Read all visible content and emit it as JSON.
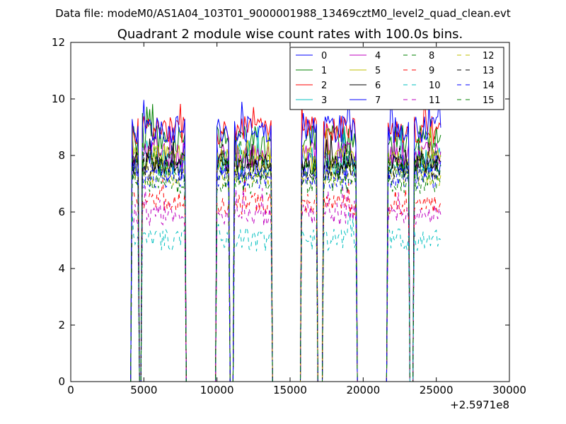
{
  "figure": {
    "suptitle": "Data file: modeM0/AS1A04_103T01_9000001988_13469cztM0_level2_quad_clean.evt"
  },
  "chart_data": {
    "type": "line",
    "title": "Quadrant 2 module wise count rates with 100.0s bins.",
    "xlabel": "",
    "ylabel": "",
    "x_offset_label": "+2.5971e8",
    "xlim": [
      0,
      30000
    ],
    "ylim": [
      0,
      12
    ],
    "x_ticks": [
      0,
      5000,
      10000,
      15000,
      20000,
      25000,
      30000
    ],
    "y_ticks": [
      0,
      2,
      4,
      6,
      8,
      10,
      12
    ],
    "grid": false,
    "legend_position": "top-right",
    "legend_columns": 4,
    "active_ranges": [
      [
        4200,
        4600
      ],
      [
        4900,
        7800
      ],
      [
        10000,
        10800
      ],
      [
        11200,
        13700
      ],
      [
        15800,
        16800
      ],
      [
        17300,
        19500
      ],
      [
        21700,
        23100
      ],
      [
        23500,
        25300
      ]
    ],
    "series": [
      {
        "name": "0",
        "color": "#0000ff",
        "dash": "solid",
        "level": 7.6,
        "amp": 0.5
      },
      {
        "name": "1",
        "color": "#008000",
        "dash": "solid",
        "level": 8.5,
        "amp": 0.6
      },
      {
        "name": "2",
        "color": "#ff0000",
        "dash": "solid",
        "level": 8.9,
        "amp": 0.5
      },
      {
        "name": "3",
        "color": "#00bfbf",
        "dash": "solid",
        "level": 7.8,
        "amp": 0.5
      },
      {
        "name": "4",
        "color": "#bf00bf",
        "dash": "solid",
        "level": 8.0,
        "amp": 0.5
      },
      {
        "name": "5",
        "color": "#bfbf00",
        "dash": "solid",
        "level": 7.9,
        "amp": 0.5
      },
      {
        "name": "6",
        "color": "#000000",
        "dash": "solid",
        "level": 7.7,
        "amp": 0.4
      },
      {
        "name": "7",
        "color": "#0000ff",
        "dash": "solid",
        "level": 8.9,
        "amp": 0.5
      },
      {
        "name": "8",
        "color": "#008000",
        "dash": "dashed",
        "level": 7.6,
        "amp": 0.5
      },
      {
        "name": "9",
        "color": "#ff0000",
        "dash": "dashed",
        "level": 6.3,
        "amp": 0.4
      },
      {
        "name": "10",
        "color": "#00bfbf",
        "dash": "dashed",
        "level": 5.0,
        "amp": 0.4
      },
      {
        "name": "11",
        "color": "#bf00bf",
        "dash": "dashed",
        "level": 5.9,
        "amp": 0.4
      },
      {
        "name": "12",
        "color": "#bfbf00",
        "dash": "dashed",
        "level": 7.3,
        "amp": 0.4
      },
      {
        "name": "13",
        "color": "#000000",
        "dash": "dashed",
        "level": 7.5,
        "amp": 0.4
      },
      {
        "name": "14",
        "color": "#0000ff",
        "dash": "dashed",
        "level": 7.2,
        "amp": 0.4
      },
      {
        "name": "15",
        "color": "#008000",
        "dash": "dashed",
        "level": 7.0,
        "amp": 0.4
      }
    ]
  }
}
